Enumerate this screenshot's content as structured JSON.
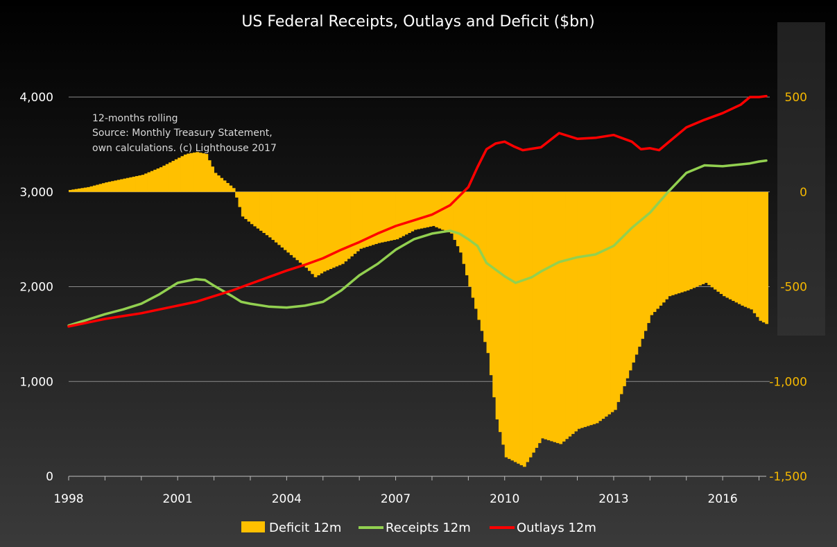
{
  "chart_data": {
    "type": "line",
    "title": "US Federal Receipts, Outlays and Deficit ($bn)",
    "notes": [
      "12-months rolling",
      "Source: Monthly Treasury Statement,",
      "own calculations. (c) Lighthouse 2017"
    ],
    "x_ticks": [
      "1998",
      "2001",
      "2004",
      "2007",
      "2010",
      "2013",
      "2016"
    ],
    "x_range": [
      1998,
      2017.2
    ],
    "y_left": {
      "range": [
        0,
        4000
      ],
      "ticks": [
        "0",
        "1,000",
        "2,000",
        "3,000",
        "4,000"
      ]
    },
    "y_right": {
      "range": [
        -1500,
        500
      ],
      "ticks": [
        "500",
        "0",
        "-500",
        "-1,000",
        "-1,500"
      ]
    },
    "grid": true,
    "legend_position": "bottom",
    "series": [
      {
        "name": "Deficit 12m",
        "kind": "bar",
        "axis": "right",
        "color": "#ffc000",
        "points": [
          [
            1998.0,
            10
          ],
          [
            1998.5,
            25
          ],
          [
            1999.0,
            50
          ],
          [
            1999.5,
            70
          ],
          [
            2000.0,
            90
          ],
          [
            2000.5,
            130
          ],
          [
            2001.0,
            180
          ],
          [
            2001.2,
            200
          ],
          [
            2001.5,
            210
          ],
          [
            2001.75,
            200
          ],
          [
            2002.0,
            100
          ],
          [
            2002.5,
            20
          ],
          [
            2002.75,
            -130
          ],
          [
            2003.0,
            -170
          ],
          [
            2003.5,
            -240
          ],
          [
            2004.0,
            -320
          ],
          [
            2004.5,
            -400
          ],
          [
            2004.75,
            -450
          ],
          [
            2005.0,
            -420
          ],
          [
            2005.5,
            -380
          ],
          [
            2006.0,
            -300
          ],
          [
            2006.5,
            -270
          ],
          [
            2007.0,
            -250
          ],
          [
            2007.5,
            -200
          ],
          [
            2008.0,
            -180
          ],
          [
            2008.5,
            -220
          ],
          [
            2008.75,
            -320
          ],
          [
            2009.0,
            -500
          ],
          [
            2009.5,
            -850
          ],
          [
            2009.75,
            -1200
          ],
          [
            2010.0,
            -1400
          ],
          [
            2010.5,
            -1450
          ],
          [
            2011.0,
            -1300
          ],
          [
            2011.5,
            -1330
          ],
          [
            2012.0,
            -1250
          ],
          [
            2012.5,
            -1220
          ],
          [
            2013.0,
            -1150
          ],
          [
            2013.5,
            -900
          ],
          [
            2014.0,
            -650
          ],
          [
            2014.5,
            -550
          ],
          [
            2015.0,
            -520
          ],
          [
            2015.5,
            -480
          ],
          [
            2016.0,
            -550
          ],
          [
            2016.5,
            -600
          ],
          [
            2016.75,
            -620
          ],
          [
            2017.0,
            -680
          ],
          [
            2017.2,
            -700
          ]
        ]
      },
      {
        "name": "Receipts 12m",
        "kind": "line",
        "axis": "left",
        "color": "#92d050",
        "points": [
          [
            1998.0,
            1590
          ],
          [
            1998.5,
            1650
          ],
          [
            1999.0,
            1710
          ],
          [
            1999.5,
            1760
          ],
          [
            2000.0,
            1820
          ],
          [
            2000.5,
            1920
          ],
          [
            2001.0,
            2040
          ],
          [
            2001.5,
            2080
          ],
          [
            2001.75,
            2070
          ],
          [
            2002.0,
            2010
          ],
          [
            2002.5,
            1900
          ],
          [
            2002.75,
            1840
          ],
          [
            2003.0,
            1820
          ],
          [
            2003.5,
            1790
          ],
          [
            2004.0,
            1780
          ],
          [
            2004.5,
            1800
          ],
          [
            2005.0,
            1840
          ],
          [
            2005.5,
            1960
          ],
          [
            2006.0,
            2120
          ],
          [
            2006.5,
            2240
          ],
          [
            2007.0,
            2390
          ],
          [
            2007.5,
            2500
          ],
          [
            2008.0,
            2560
          ],
          [
            2008.5,
            2590
          ],
          [
            2008.75,
            2560
          ],
          [
            2009.0,
            2500
          ],
          [
            2009.25,
            2430
          ],
          [
            2009.5,
            2250
          ],
          [
            2010.0,
            2110
          ],
          [
            2010.3,
            2040
          ],
          [
            2010.75,
            2100
          ],
          [
            2011.0,
            2160
          ],
          [
            2011.5,
            2260
          ],
          [
            2012.0,
            2310
          ],
          [
            2012.5,
            2340
          ],
          [
            2013.0,
            2430
          ],
          [
            2013.5,
            2620
          ],
          [
            2014.0,
            2780
          ],
          [
            2014.5,
            3000
          ],
          [
            2015.0,
            3200
          ],
          [
            2015.5,
            3280
          ],
          [
            2016.0,
            3270
          ],
          [
            2016.5,
            3290
          ],
          [
            2016.75,
            3300
          ],
          [
            2017.0,
            3320
          ],
          [
            2017.2,
            3330
          ]
        ]
      },
      {
        "name": "Outlays 12m",
        "kind": "line",
        "axis": "left",
        "color": "#ff0000",
        "points": [
          [
            1998.0,
            1580
          ],
          [
            1998.5,
            1620
          ],
          [
            1999.0,
            1660
          ],
          [
            1999.5,
            1690
          ],
          [
            2000.0,
            1720
          ],
          [
            2000.5,
            1760
          ],
          [
            2001.0,
            1800
          ],
          [
            2001.5,
            1840
          ],
          [
            2002.0,
            1900
          ],
          [
            2002.5,
            1960
          ],
          [
            2003.0,
            2030
          ],
          [
            2003.5,
            2100
          ],
          [
            2004.0,
            2170
          ],
          [
            2004.5,
            2230
          ],
          [
            2005.0,
            2300
          ],
          [
            2005.5,
            2390
          ],
          [
            2006.0,
            2470
          ],
          [
            2006.5,
            2560
          ],
          [
            2007.0,
            2640
          ],
          [
            2007.5,
            2700
          ],
          [
            2008.0,
            2760
          ],
          [
            2008.5,
            2860
          ],
          [
            2009.0,
            3050
          ],
          [
            2009.25,
            3260
          ],
          [
            2009.5,
            3450
          ],
          [
            2009.75,
            3510
          ],
          [
            2010.0,
            3530
          ],
          [
            2010.25,
            3480
          ],
          [
            2010.5,
            3440
          ],
          [
            2011.0,
            3470
          ],
          [
            2011.5,
            3620
          ],
          [
            2012.0,
            3560
          ],
          [
            2012.5,
            3570
          ],
          [
            2013.0,
            3600
          ],
          [
            2013.5,
            3530
          ],
          [
            2013.75,
            3450
          ],
          [
            2014.0,
            3460
          ],
          [
            2014.25,
            3440
          ],
          [
            2014.5,
            3520
          ],
          [
            2014.75,
            3600
          ],
          [
            2015.0,
            3680
          ],
          [
            2015.5,
            3760
          ],
          [
            2016.0,
            3830
          ],
          [
            2016.5,
            3920
          ],
          [
            2016.75,
            4000
          ],
          [
            2017.0,
            4000
          ],
          [
            2017.2,
            4010
          ]
        ]
      }
    ]
  }
}
